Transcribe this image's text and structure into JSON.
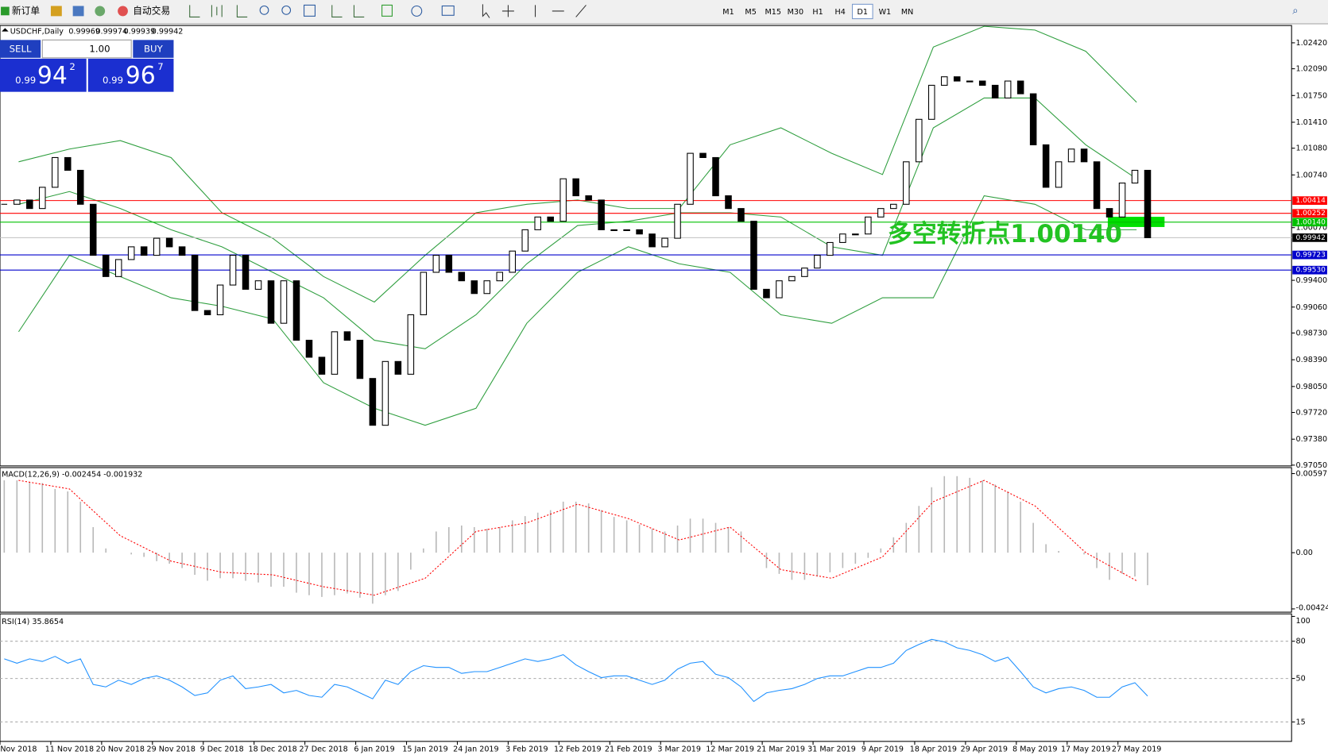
{
  "toolbar": {
    "new_order": "新订单",
    "auto_trading": "自动交易",
    "timeframes": [
      {
        "label": "M1"
      },
      {
        "label": "M5"
      },
      {
        "label": "M15"
      },
      {
        "label": "M30"
      },
      {
        "label": "H1"
      },
      {
        "label": "H4"
      },
      {
        "label": "D1",
        "selected": true
      },
      {
        "label": "W1"
      },
      {
        "label": "MN"
      }
    ]
  },
  "chart_header": {
    "symbol": "USDCHF,Daily",
    "ohlc": [
      "0.99969",
      "0.99974",
      "0.99939",
      "0.99942"
    ]
  },
  "trade_panel": {
    "sell": "SELL",
    "buy": "BUY",
    "lots": "1.00",
    "sell_price": {
      "prefix": "0.99",
      "big": "94",
      "sup": "2"
    },
    "buy_price": {
      "prefix": "0.99",
      "big": "96",
      "sup": "7"
    }
  },
  "price_chart": {
    "ylim": [
      0.9704,
      1.0264
    ],
    "yticks": [
      {
        "value": 1.0242,
        "label": "1.02420"
      },
      {
        "value": 1.0209,
        "label": "1.02090"
      },
      {
        "value": 1.0175,
        "label": "1.01750"
      },
      {
        "value": 1.0141,
        "label": "1.01410"
      },
      {
        "value": 1.0108,
        "label": "1.01080"
      },
      {
        "value": 1.0074,
        "label": "1.00740"
      },
      {
        "value": 1.0007,
        "label": "1.00070"
      },
      {
        "value": 0.994,
        "label": "0.99400"
      },
      {
        "value": 0.9906,
        "label": "0.99060"
      },
      {
        "value": 0.9873,
        "label": "0.98730"
      },
      {
        "value": 0.9839,
        "label": "0.98390"
      },
      {
        "value": 0.9805,
        "label": "0.98050"
      },
      {
        "value": 0.9772,
        "label": "0.97720"
      },
      {
        "value": 0.9738,
        "label": "0.97380"
      },
      {
        "value": 0.9705,
        "label": "0.97050"
      }
    ],
    "closes": [
      1.00367,
      1.00421,
      1.00313,
      1.00583,
      1.00961,
      1.00799,
      1.00367,
      0.99718,
      0.99448,
      0.99664,
      0.99826,
      0.99718,
      0.99935,
      0.99826,
      0.99718,
      0.99016,
      0.98962,
      0.9934,
      0.99718,
      0.99286,
      0.99394,
      0.98854,
      0.99394,
      0.98638,
      0.98422,
      0.98206,
      0.98746,
      0.98638,
      0.98152,
      0.97557,
      0.98368,
      0.98206,
      0.98962,
      0.99502,
      0.99718,
      0.99502,
      0.99394,
      0.99232,
      0.99394,
      0.99502,
      0.99772,
      1.00043,
      1.00205,
      1.00151,
      1.00691,
      1.00475,
      1.00421,
      1.00043,
      1.00043,
      1.00043,
      0.99989,
      0.99826,
      0.99935,
      1.00367,
      1.01015,
      1.00961,
      1.00475,
      1.00313,
      1.00151,
      0.99286,
      0.99178,
      0.99394,
      0.99448,
      0.99556,
      0.99718,
      0.99881,
      0.99989,
      0.99989,
      1.00205,
      1.00313,
      1.00367,
      1.00907,
      1.01447,
      1.0188,
      1.01988,
      1.01934,
      1.01934,
      1.0188,
      1.01718,
      1.01934,
      1.01772,
      1.01123,
      1.00583,
      1.00907,
      1.01069,
      1.00907,
      1.00313,
      1.00205,
      1.00637,
      1.00799,
      0.99942
    ],
    "bollinger": {
      "color": "#2e9e3e",
      "upper": [
        1.00907,
        1.01069,
        1.01177,
        1.00961,
        1.00259,
        0.99935,
        0.99448,
        0.99124,
        0.99718,
        1.00259,
        1.00367,
        1.00421,
        1.00313,
        1.00313,
        1.01123,
        1.01339,
        1.01015,
        1.00745,
        1.02366,
        1.0263,
        1.02582,
        1.02312,
        1.01664
      ],
      "middle": [
        1.00367,
        1.00529,
        1.00313,
        1.00043,
        0.99826,
        0.99502,
        0.99178,
        0.98638,
        0.9853,
        0.98962,
        0.9961,
        1.00097,
        1.00151,
        1.00259,
        1.00259,
        1.00205,
        0.99826,
        0.99718,
        1.01339,
        1.01718,
        1.01718,
        1.01123,
        1.00691
      ],
      "lower": [
        0.98746,
        0.99718,
        0.99448,
        0.99178,
        0.9907,
        0.98908,
        0.98098,
        0.97773,
        0.97557,
        0.97773,
        0.98854,
        0.99502,
        0.99826,
        0.9961,
        0.99502,
        0.98962,
        0.98854,
        0.99178,
        0.99178,
        1.00475,
        1.00367,
        1.00043,
        1.00043
      ]
    },
    "levels": [
      {
        "value": 1.00414,
        "label": "1.00414",
        "color": "#ff0000",
        "label_color": "#ff0000"
      },
      {
        "value": 1.00252,
        "label": "1.00252",
        "color": "#ff0000",
        "label_color": "#ff0000"
      },
      {
        "value": 1.0014,
        "label": "1.00140",
        "color": "#00c000",
        "label_color": "#00c000"
      },
      {
        "value": 0.99942,
        "label": "0.99942",
        "color": "#c0c0c0",
        "label_color": "#000000"
      },
      {
        "value": 0.99723,
        "label": "0.99723",
        "color": "#0000cc",
        "label_color": "#0000cc"
      },
      {
        "value": 0.9953,
        "label": "0.99530",
        "color": "#0000cc",
        "label_color": "#0000cc"
      }
    ],
    "annotation": "多空转折点1.00140",
    "annotation_color": "#22c322"
  },
  "macd": {
    "label": "MACD(12,26,9) -0.002454 -0.001932",
    "ylim": [
      -0.00449,
      0.00642
    ],
    "yticks": [
      0.00597,
      {
        "value": 0,
        "label": "0.00"
      },
      -0.004243
    ],
    "hist_color": "#b8b8b8",
    "signal_color": "#ff0000",
    "histogram": [
      0.00546,
      0.00546,
      0.00533,
      0.00526,
      0.00481,
      0.00462,
      0.00385,
      0.00193,
      0.00032,
      0,
      -0.00013,
      -0.00032,
      -0.00064,
      -0.00083,
      -0.00116,
      -0.00167,
      -0.00212,
      -0.00193,
      -0.00193,
      -0.00212,
      -0.00225,
      -0.00257,
      -0.00257,
      -0.00302,
      -0.00321,
      -0.00334,
      -0.00321,
      -0.00308,
      -0.0034,
      -0.00385,
      -0.00321,
      -0.00289,
      -0.00128,
      0.00032,
      0.0016,
      0.00193,
      0.00205,
      0.00193,
      0.0018,
      0.00193,
      0.00244,
      0.00276,
      0.00302,
      0.00321,
      0.00385,
      0.00385,
      0.00372,
      0.00321,
      0.0027,
      0.00244,
      0.00212,
      0.0018,
      0.0016,
      0.00205,
      0.00257,
      0.00257,
      0.00225,
      0.00193,
      0.0016,
      0,
      -0.00116,
      -0.0016,
      -0.00205,
      -0.00205,
      -0.0018,
      -0.00148,
      -0.00116,
      -0.00083,
      -0.00039,
      0.00032,
      0.00116,
      0.00225,
      0.00353,
      0.00494,
      0.00578,
      0.00578,
      0.00565,
      0.00546,
      0.00514,
      0.00462,
      0.00385,
      0.00225,
      0.00064,
      0.00013,
      0,
      -0.00013,
      -0.00116,
      -0.00205,
      -0.0016,
      -0.0018,
      -0.002454
    ],
    "signal": [
      0.00546,
      0.00481,
      0.00128,
      -0.00064,
      -0.00148,
      -0.00167,
      -0.00257,
      -0.00321,
      -0.00193,
      0.0016,
      0.00225,
      0.00366,
      0.00257,
      0.00096,
      0.00193,
      -0.00128,
      -0.00193,
      -0.00032,
      0.00385,
      0.00546,
      0.00353,
      0,
      -0.00212
    ]
  },
  "rsi": {
    "label": "RSI(14) 35.8654",
    "ylim": [
      0,
      100
    ],
    "yticks": [
      100,
      80,
      50,
      15
    ],
    "levels": [
      80,
      50,
      15
    ],
    "color": "#1e90ff",
    "values": [
      65.8,
      62.3,
      65.8,
      63.7,
      67.8,
      62.3,
      65.8,
      45.2,
      43.2,
      48.6,
      45.2,
      50.0,
      52.1,
      48.6,
      43.2,
      36.3,
      38.4,
      48.6,
      52.1,
      41.8,
      43.2,
      45.2,
      38.4,
      40.4,
      36.3,
      34.9,
      45.2,
      43.2,
      38.4,
      33.6,
      48.6,
      45.2,
      55.5,
      60.3,
      58.9,
      58.9,
      54.1,
      55.5,
      55.5,
      58.9,
      62.3,
      65.8,
      63.7,
      65.8,
      69.2,
      61.0,
      55.5,
      50.7,
      52.1,
      52.1,
      48.6,
      45.2,
      48.6,
      57.5,
      62.3,
      63.7,
      53.4,
      50.7,
      43.2,
      31.5,
      38.4,
      40.4,
      41.8,
      45.2,
      50.0,
      52.1,
      52.1,
      55.5,
      58.9,
      58.9,
      62.3,
      72.6,
      77.4,
      81.5,
      79.5,
      74.7,
      72.6,
      69.2,
      63.7,
      67.1,
      55.5,
      43.2,
      38.4,
      41.8,
      43.2,
      40.4,
      34.9,
      34.9,
      43.2,
      46.6,
      35.8654
    ]
  },
  "dates": [
    "Nov 2018",
    "11 Nov 2018",
    "20 Nov 2018",
    "29 Nov 2018",
    "9 Dec 2018",
    "18 Dec 2018",
    "27 Dec 2018",
    "6 Jan 2019",
    "15 Jan 2019",
    "24 Jan 2019",
    "3 Feb 2019",
    "12 Feb 2019",
    "21 Feb 2019",
    "3 Mar 2019",
    "12 Mar 2019",
    "21 Mar 2019",
    "31 Mar 2019",
    "9 Apr 2019",
    "18 Apr 2019",
    "29 Apr 2019",
    "8 May 2019",
    "17 May 2019",
    "27 May 2019"
  ]
}
